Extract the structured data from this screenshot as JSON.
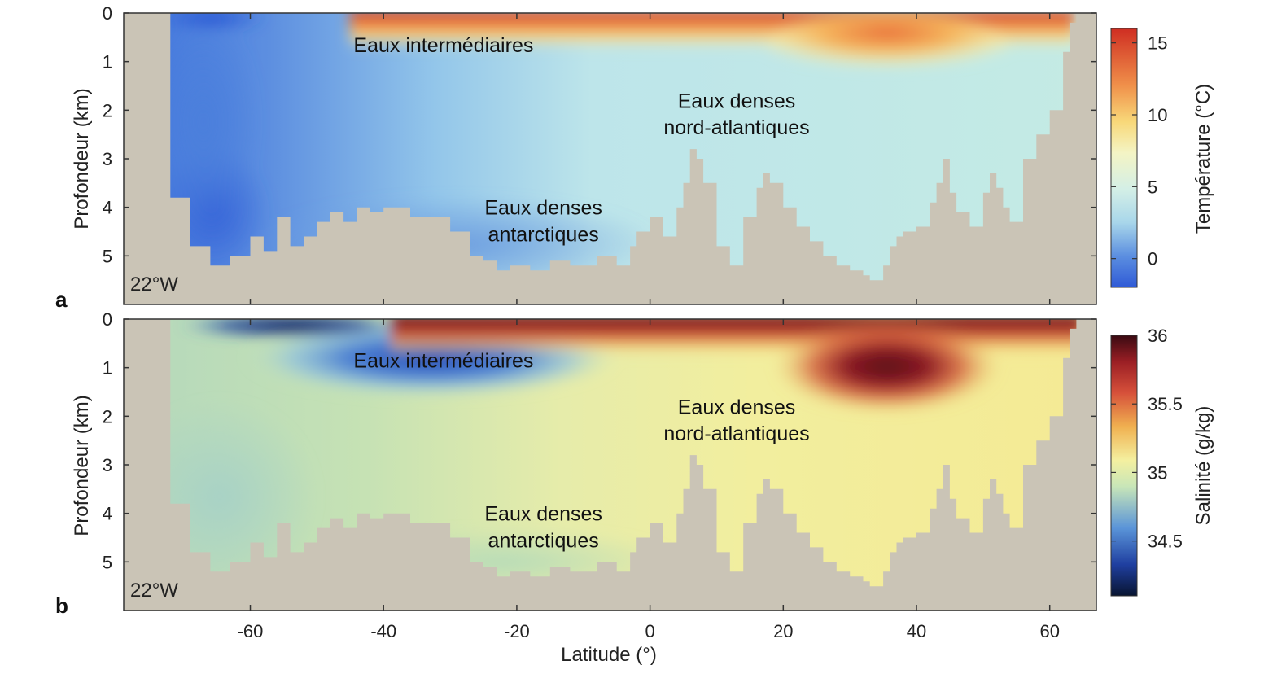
{
  "chart_data": [
    {
      "panel": "a",
      "type": "heatmap",
      "variable": "temperature",
      "ylabel": "Profondeur (km)",
      "colorbar_label": "Température (°C)",
      "colorbar_ticks": [
        0,
        5,
        10,
        15
      ],
      "colorbar_range": [
        -2,
        16
      ],
      "colormap": "blue-cyan-yellow-red",
      "longitude_label": "22°W",
      "ylim": [
        0,
        6
      ],
      "yticks": [
        0,
        1,
        2,
        3,
        4,
        5
      ],
      "annotations": [
        {
          "text": "Eaux intermédiaires",
          "lat": -31,
          "depth": 0.65
        },
        {
          "text": "Eaux denses",
          "lat": 13,
          "depth": 1.8
        },
        {
          "text": "nord-atlantiques",
          "lat": 13,
          "depth": 2.35
        },
        {
          "text": "Eaux denses",
          "lat": -16,
          "depth": 4.0
        },
        {
          "text": "antarctiques",
          "lat": -16,
          "depth": 4.55
        }
      ]
    },
    {
      "panel": "b",
      "type": "heatmap",
      "variable": "salinity",
      "ylabel": "Profondeur (km)",
      "xlabel": "Latitude (°)",
      "colorbar_label": "Salinité (g/kg)",
      "colorbar_ticks": [
        34.5,
        35,
        35.5,
        36
      ],
      "colorbar_range": [
        34.1,
        36.0
      ],
      "colormap": "navy-blue-yellow-red-darkred",
      "longitude_label": "22°W",
      "xlim": [
        -79,
        67
      ],
      "xticks": [
        -60,
        -40,
        -20,
        0,
        20,
        40,
        60
      ],
      "ylim": [
        0,
        6
      ],
      "yticks": [
        0,
        1,
        2,
        3,
        4,
        5
      ],
      "annotations": [
        {
          "text": "Eaux intermédiaires",
          "lat": -31,
          "depth": 0.85
        },
        {
          "text": "Eaux denses",
          "lat": 13,
          "depth": 1.8
        },
        {
          "text": "nord-atlantiques",
          "lat": 13,
          "depth": 2.35
        },
        {
          "text": "Eaux denses",
          "lat": -16,
          "depth": 4.0
        },
        {
          "text": "antarctiques",
          "lat": -16,
          "depth": 4.55
        }
      ]
    }
  ],
  "bathymetry": {
    "lat": [
      -79,
      -74.5,
      -72,
      -69,
      -66,
      -63,
      -60,
      -58,
      -56,
      -54,
      -52,
      -50,
      -48,
      -46,
      -44,
      -42,
      -40,
      -36,
      -30,
      -27,
      -25,
      -23,
      -21,
      -18,
      -15,
      -12,
      -8,
      -5,
      -3,
      -2,
      0,
      2,
      4,
      5,
      6,
      7,
      8,
      10,
      12,
      14,
      16,
      17,
      18,
      20,
      22,
      24,
      26,
      28,
      30,
      32,
      33,
      35,
      36,
      37,
      38,
      40,
      42,
      43,
      44,
      45,
      46,
      48,
      50,
      51,
      52,
      53,
      54,
      56,
      58,
      60,
      62,
      63,
      64,
      67
    ],
    "depth": [
      0,
      0,
      3.8,
      4.8,
      5.2,
      5.0,
      4.6,
      4.9,
      4.2,
      4.8,
      4.6,
      4.3,
      4.1,
      4.3,
      4.0,
      4.1,
      4.0,
      4.2,
      4.5,
      5.0,
      5.1,
      5.3,
      5.2,
      5.3,
      5.1,
      5.2,
      5.0,
      5.2,
      4.8,
      4.5,
      4.2,
      4.6,
      4.0,
      3.5,
      2.8,
      3.0,
      3.5,
      4.8,
      5.2,
      4.2,
      3.6,
      3.3,
      3.5,
      4.0,
      4.4,
      4.7,
      5.0,
      5.2,
      5.3,
      5.4,
      5.5,
      5.2,
      4.8,
      4.6,
      4.5,
      4.4,
      3.9,
      3.5,
      3.0,
      3.7,
      4.1,
      4.4,
      3.7,
      3.3,
      3.6,
      4.0,
      4.3,
      3.0,
      2.5,
      2.0,
      0.8,
      0.2,
      0,
      0
    ]
  }
}
